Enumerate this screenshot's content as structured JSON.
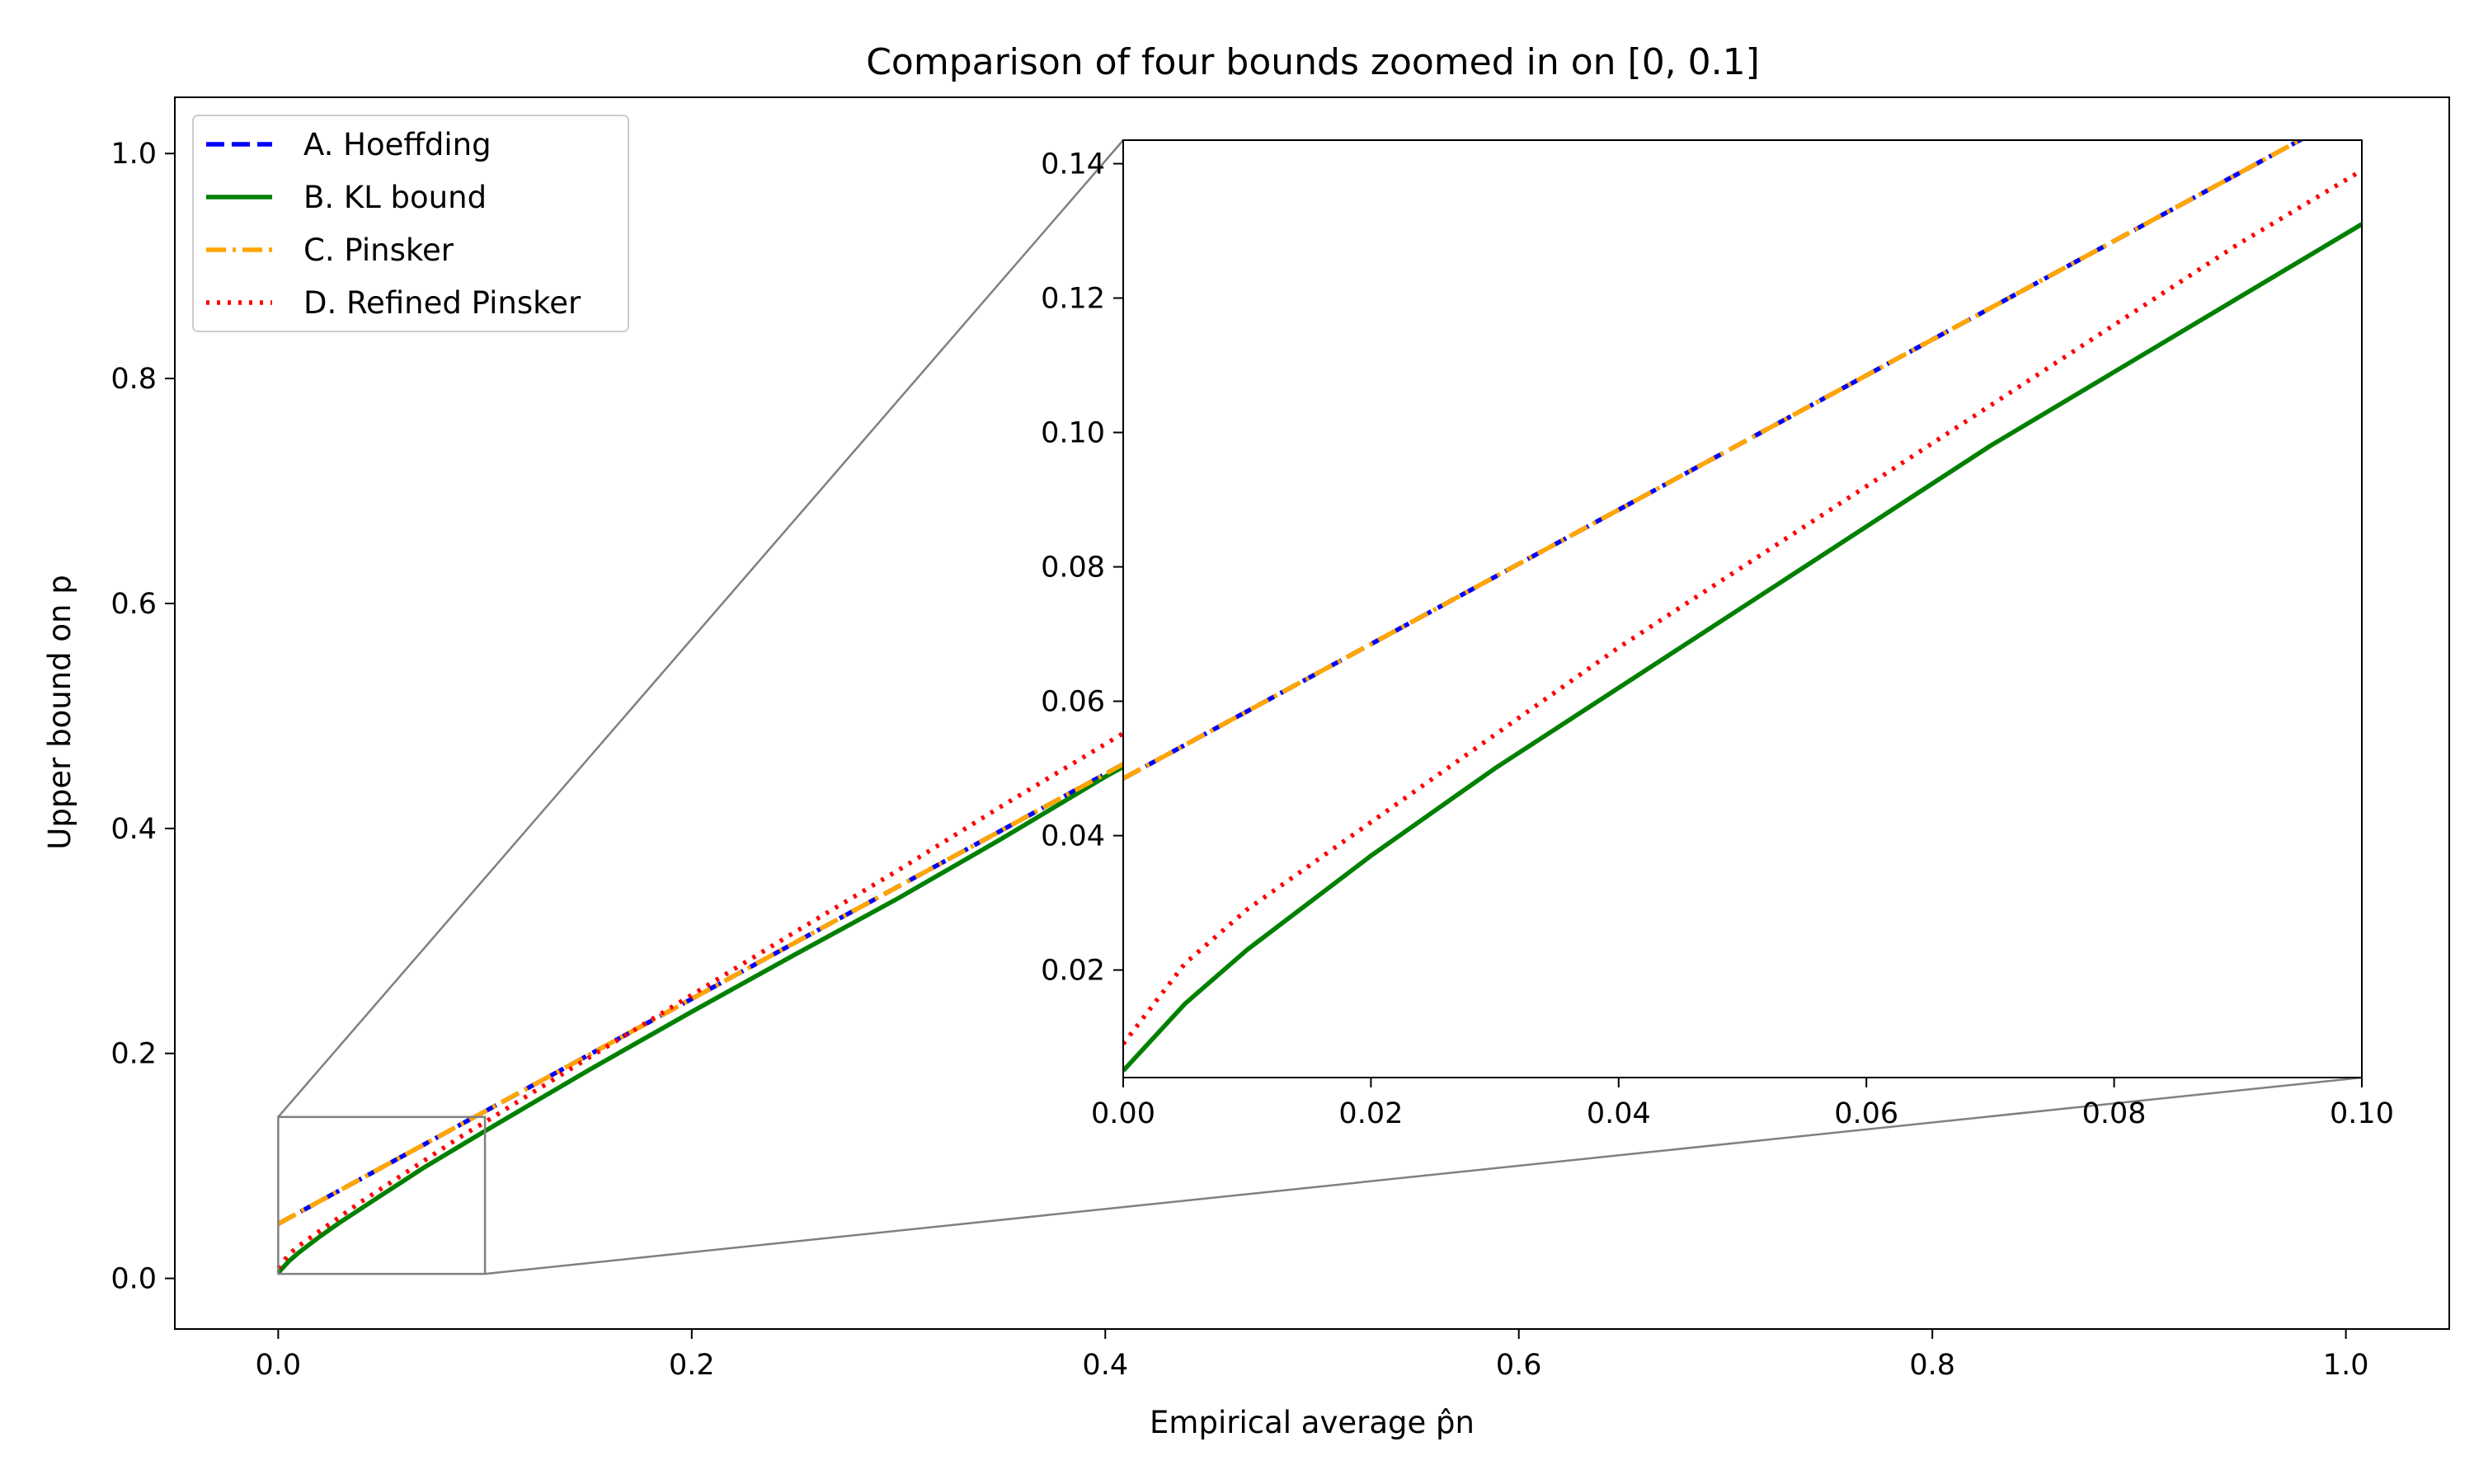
{
  "chart_data": {
    "type": "line",
    "title": "Comparison of four bounds zoomed in on [0, 0.1]",
    "xlabel": "Empirical average p̂n",
    "ylabel": "Upper bound on p",
    "xlim": [
      -0.05,
      1.05
    ],
    "ylim": [
      -0.045,
      1.05
    ],
    "xticks": [
      0.0,
      0.2,
      0.4,
      0.6,
      0.8,
      1.0
    ],
    "xtick_labels": [
      "0.0",
      "0.2",
      "0.4",
      "0.6",
      "0.8",
      "1.0"
    ],
    "yticks": [
      0.0,
      0.2,
      0.4,
      0.6,
      0.8,
      1.0
    ],
    "ytick_labels": [
      "0.0",
      "0.2",
      "0.4",
      "0.6",
      "0.8",
      "1.0"
    ],
    "grid": false,
    "legend_position": "upper-left",
    "x": [
      0.0,
      0.005,
      0.01,
      0.02,
      0.03,
      0.04,
      0.05,
      0.06,
      0.07,
      0.08,
      0.09,
      0.1,
      0.15,
      0.2,
      0.25,
      0.3,
      0.35,
      0.4,
      0.41
    ],
    "series": [
      {
        "name": "A. Hoeffding",
        "color": "#0000ff",
        "style": "dashed",
        "values": [
          0.0485,
          0.0535,
          0.0585,
          0.0685,
          0.0785,
          0.0885,
          0.0985,
          0.1085,
          0.1185,
          0.1285,
          0.1385,
          0.1485,
          0.1985,
          0.2485,
          0.2985,
          0.3485,
          0.3985,
          0.4485,
          0.4585
        ]
      },
      {
        "name": "B. KL bound",
        "color": "#008000",
        "style": "solid",
        "values": [
          0.005,
          0.015,
          0.023,
          0.037,
          0.05,
          0.062,
          0.074,
          0.086,
          0.098,
          0.109,
          0.12,
          0.131,
          0.185,
          0.237,
          0.288,
          0.338,
          0.391,
          0.446,
          0.456
        ]
      },
      {
        "name": "C. Pinsker",
        "color": "#ffa500",
        "style": "dashdot",
        "values": [
          0.0485,
          0.0535,
          0.0585,
          0.0685,
          0.0785,
          0.0885,
          0.0985,
          0.1085,
          0.1185,
          0.1285,
          0.1385,
          0.1485,
          0.1985,
          0.2485,
          0.2985,
          0.3485,
          0.3985,
          0.4485,
          0.4585
        ]
      },
      {
        "name": "D. Refined Pinsker",
        "color": "#ff0000",
        "style": "dotted",
        "values": [
          0.009,
          0.021,
          0.029,
          0.042,
          0.055,
          0.068,
          0.08,
          0.092,
          0.104,
          0.116,
          0.128,
          0.139,
          0.196,
          0.252,
          0.308,
          0.363,
          0.42,
          0.475,
          0.486
        ]
      }
    ],
    "inset": {
      "xlim": [
        0.0,
        0.1
      ],
      "ylim": [
        0.004,
        0.1435
      ],
      "xticks": [
        0.0,
        0.02,
        0.04,
        0.06,
        0.08,
        0.1
      ],
      "xtick_labels": [
        "0.00",
        "0.02",
        "0.04",
        "0.06",
        "0.08",
        "0.10"
      ],
      "yticks": [
        0.02,
        0.04,
        0.06,
        0.08,
        0.1,
        0.12,
        0.14
      ],
      "ytick_labels": [
        "0.02",
        "0.04",
        "0.06",
        "0.08",
        "0.10",
        "0.12",
        "0.14"
      ],
      "zoom_box": {
        "x": [
          0.0,
          0.1
        ],
        "y": [
          0.004,
          0.1435
        ]
      }
    }
  }
}
